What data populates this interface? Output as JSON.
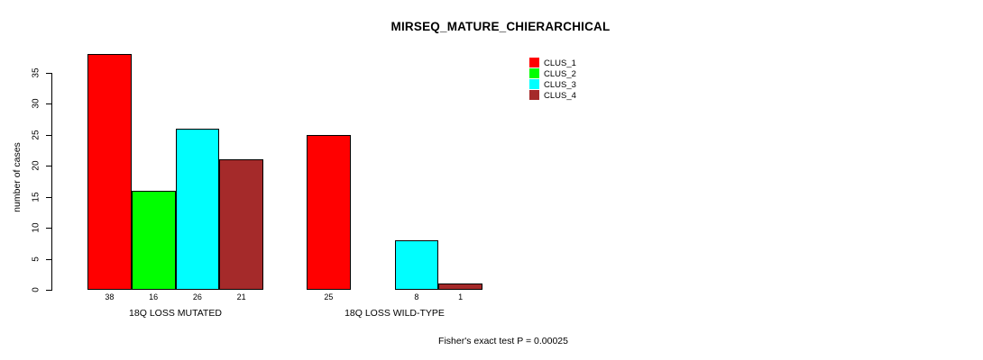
{
  "chart_data": {
    "type": "bar",
    "title": "MIRSEQ_MATURE_CHIERARCHICAL",
    "xlabel": "",
    "ylabel": "number of cases",
    "categories": [
      "18Q LOSS MUTATED",
      "18Q LOSS WILD-TYPE"
    ],
    "series": [
      {
        "name": "CLUS_1",
        "color": "#FF0000",
        "values": [
          38,
          25
        ]
      },
      {
        "name": "CLUS_2",
        "color": "#00FF00",
        "values": [
          16,
          0
        ]
      },
      {
        "name": "CLUS_3",
        "color": "#00FFFF",
        "values": [
          26,
          8
        ]
      },
      {
        "name": "CLUS_4",
        "color": "#A52A2A",
        "values": [
          21,
          1
        ]
      }
    ],
    "ylim": [
      0,
      35
    ],
    "yticks": [
      0,
      5,
      10,
      15,
      20,
      25,
      30,
      35
    ],
    "grid": false,
    "legend_position": "top-right",
    "bar_value_labels_shown": true,
    "annotation": "Fisher's exact test P = 0.00025",
    "axis_color": "#000000",
    "background_color": "#FFFFFF"
  }
}
